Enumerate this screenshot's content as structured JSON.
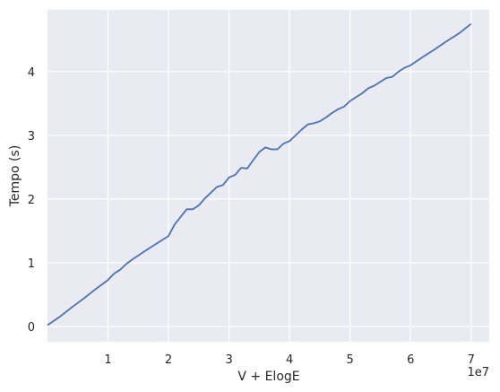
{
  "chart_data": {
    "type": "line",
    "xlabel": "V + ElogE",
    "ylabel": "Tempo (s)",
    "x_offset_label": "1e7",
    "xlim": [
      0,
      73000000
    ],
    "ylim": [
      -0.24,
      4.97
    ],
    "xticks": [
      10000000,
      20000000,
      30000000,
      40000000,
      50000000,
      60000000,
      70000000
    ],
    "xtick_labels": [
      "1",
      "2",
      "3",
      "4",
      "5",
      "6",
      "7"
    ],
    "yticks": [
      0,
      1,
      2,
      3,
      4
    ],
    "ytick_labels": [
      "0",
      "1",
      "2",
      "3",
      "4"
    ],
    "grid": true,
    "colors": {
      "background": "#eaeaf2",
      "grid": "#ffffff",
      "line": "#4c72b0"
    },
    "series": [
      {
        "x": [
          0,
          2000000,
          4000000,
          6000000,
          8000000,
          10000000,
          11000000,
          12000000,
          13000000,
          14000000,
          16000000,
          18000000,
          20000000,
          21000000,
          22000000,
          23000000,
          24000000,
          25000000,
          26000000,
          27000000,
          28000000,
          29000000,
          30000000,
          31000000,
          32000000,
          33000000,
          34000000,
          35000000,
          36000000,
          37000000,
          38000000,
          39000000,
          40000000,
          41000000,
          42000000,
          43000000,
          44000000,
          45000000,
          46000000,
          47000000,
          48000000,
          49000000,
          50000000,
          51000000,
          52000000,
          53000000,
          54000000,
          55000000,
          56000000,
          57000000,
          58000000,
          59000000,
          60000000,
          62000000,
          64000000,
          66000000,
          68000000,
          70000000
        ],
        "y": [
          0.02,
          0.15,
          0.3,
          0.44,
          0.59,
          0.73,
          0.83,
          0.89,
          0.98,
          1.05,
          1.18,
          1.3,
          1.42,
          1.6,
          1.72,
          1.84,
          1.84,
          1.9,
          2.01,
          2.1,
          2.19,
          2.22,
          2.34,
          2.38,
          2.49,
          2.48,
          2.61,
          2.74,
          2.81,
          2.78,
          2.78,
          2.87,
          2.91,
          3.0,
          3.09,
          3.17,
          3.19,
          3.22,
          3.28,
          3.35,
          3.41,
          3.45,
          3.54,
          3.6,
          3.66,
          3.74,
          3.78,
          3.84,
          3.9,
          3.92,
          4.0,
          4.06,
          4.1,
          4.23,
          4.35,
          4.48,
          4.6,
          4.75
        ]
      }
    ]
  }
}
